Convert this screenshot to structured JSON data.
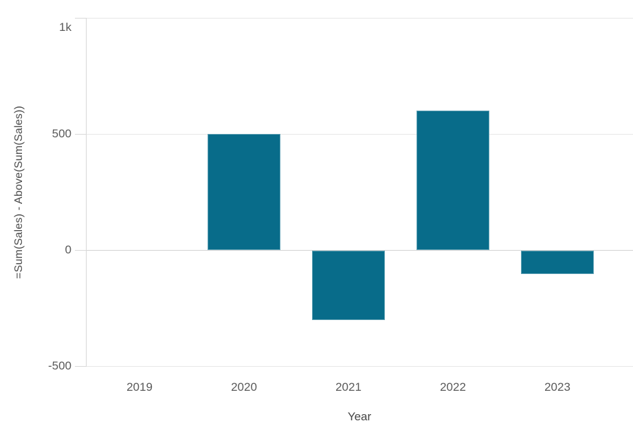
{
  "chart": {
    "bar_color": "#086c8a",
    "grid_color": "#e7e7e7",
    "zero_line_color": "#d2d2d2",
    "axis_color": "#d8d8d8",
    "tick_text_color": "#595959",
    "title_text_color": "#4a4a4a"
  },
  "chart_data": {
    "type": "bar",
    "categories": [
      "2019",
      "2020",
      "2021",
      "2022",
      "2023"
    ],
    "values": [
      null,
      500,
      -300,
      600,
      -100
    ],
    "xlabel": "Year",
    "ylabel": "=Sum(Sales) - Above(Sum(Sales))",
    "ylim": [
      -500,
      1000
    ],
    "yticks": [
      {
        "value": 1000,
        "label": "1k"
      },
      {
        "value": 500,
        "label": "500"
      },
      {
        "value": 0,
        "label": "0"
      },
      {
        "value": -500,
        "label": "-500"
      }
    ],
    "grid": true,
    "legend": false
  }
}
